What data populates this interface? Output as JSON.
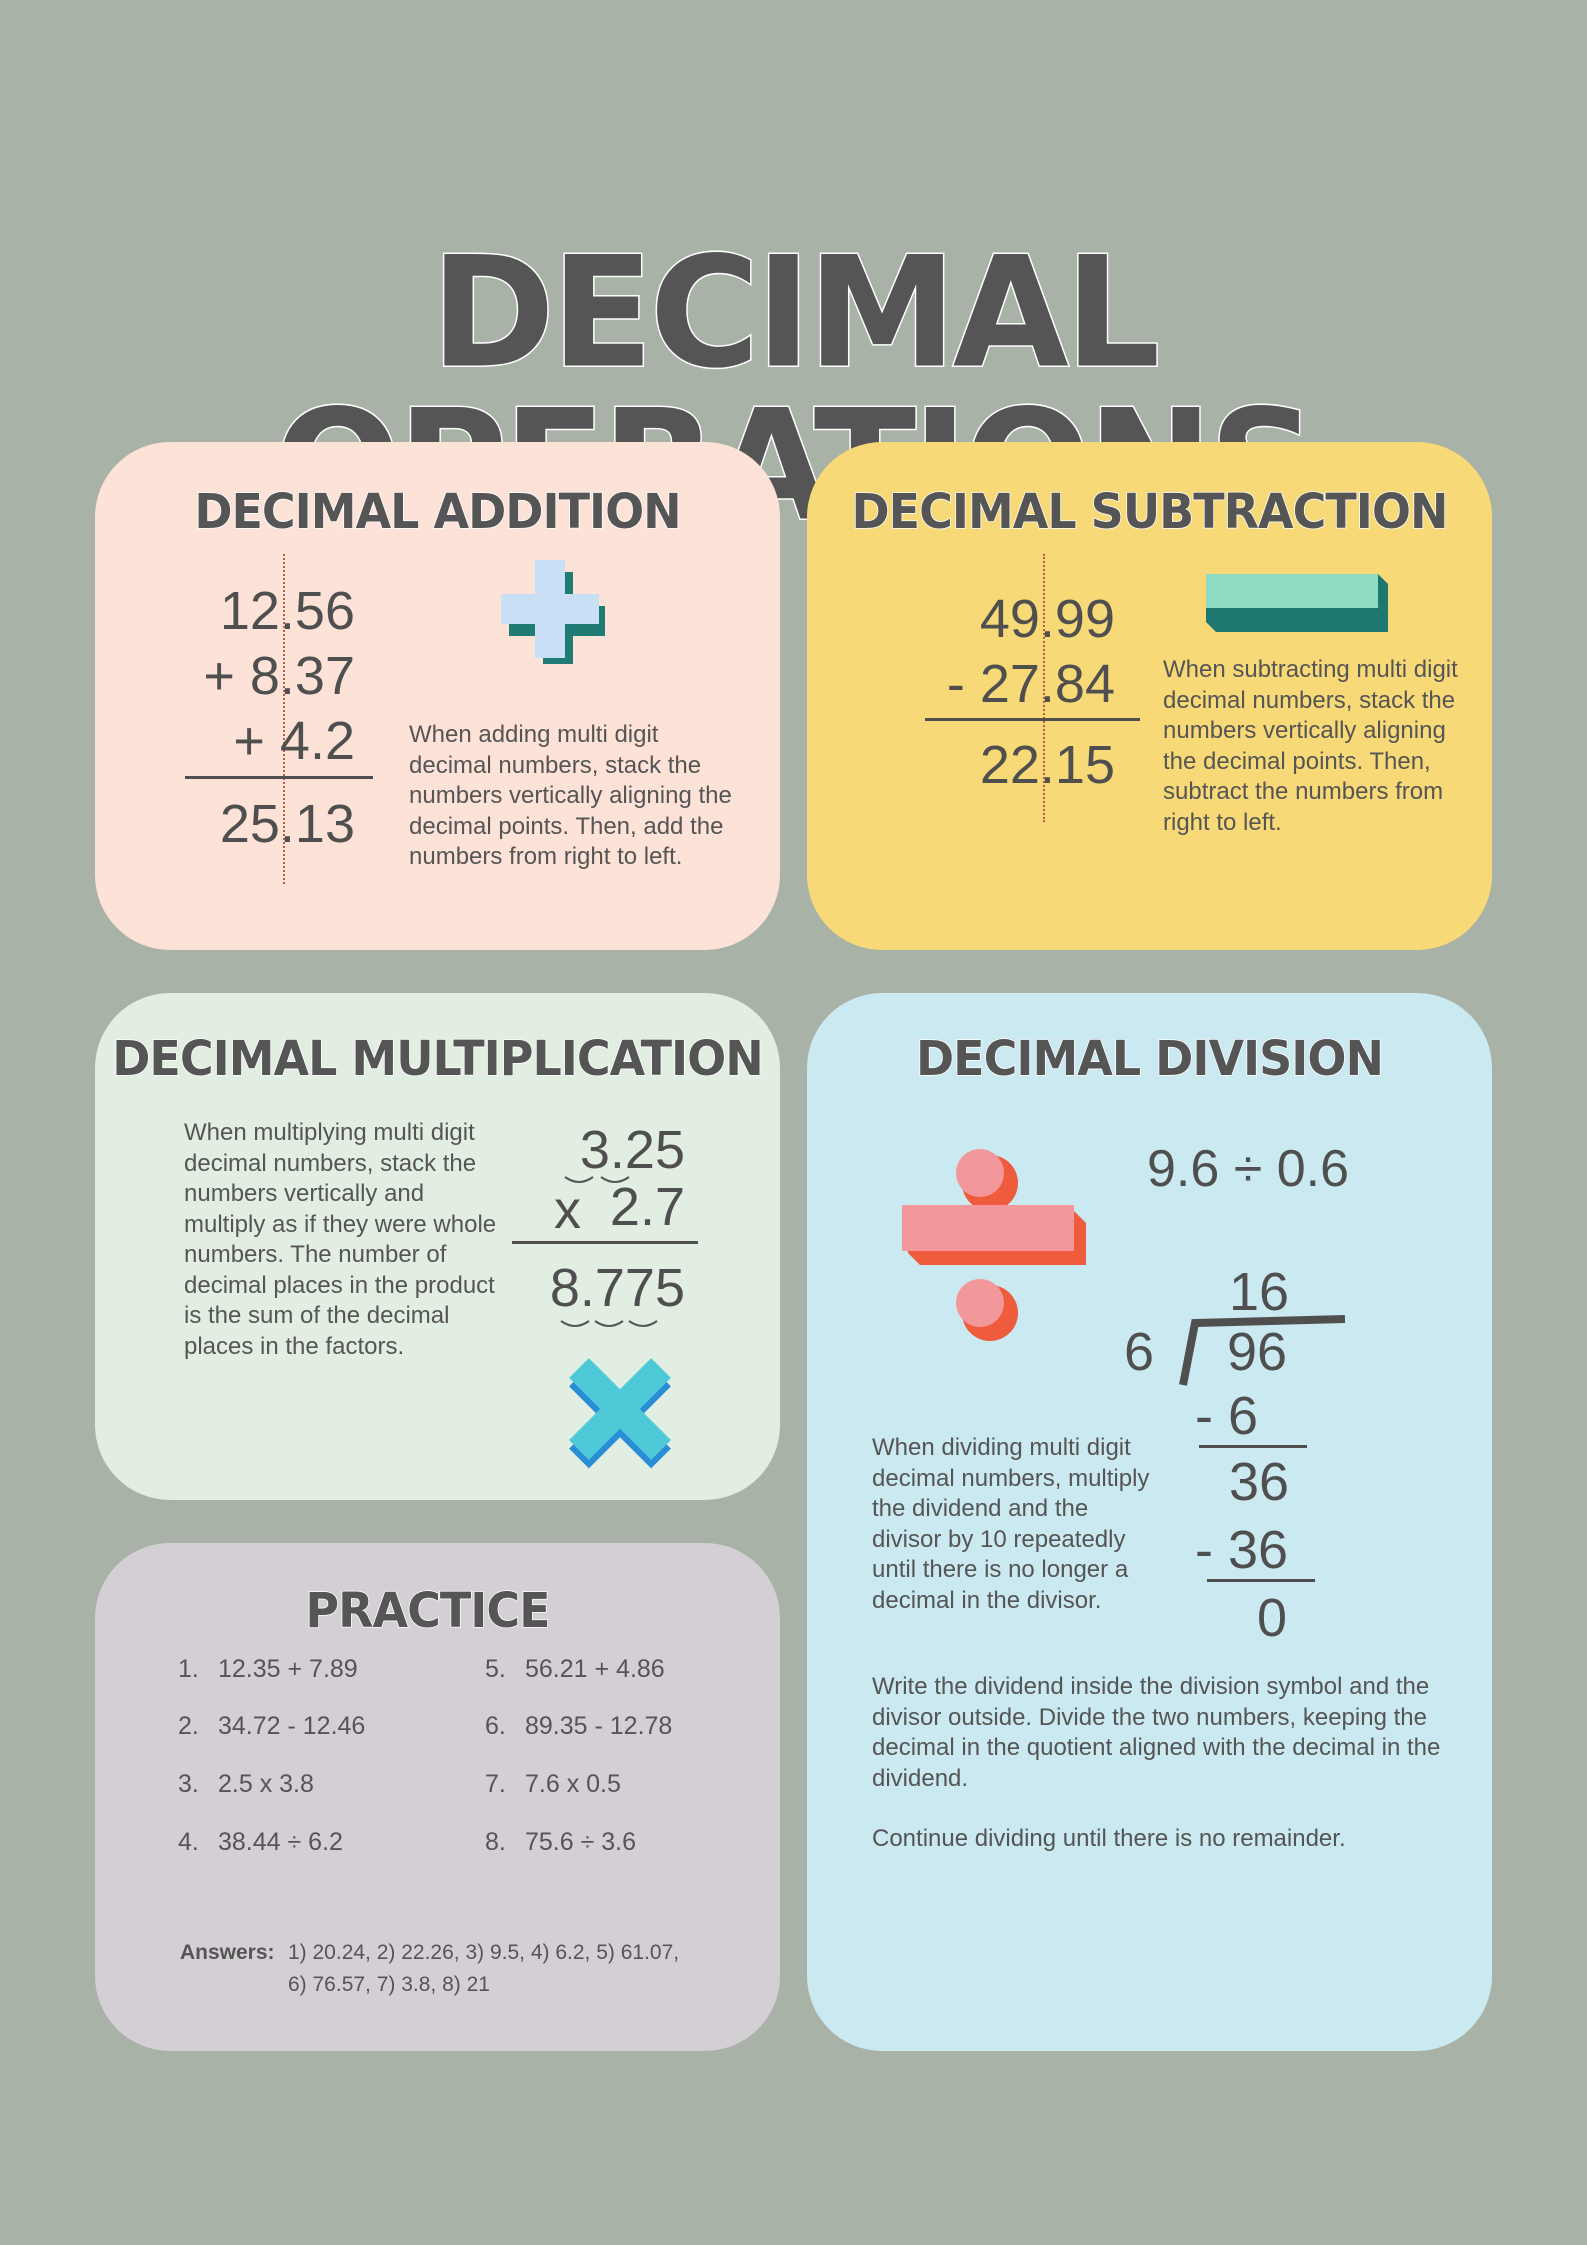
{
  "title": "DECIMAL OPERATIONS",
  "colors": {
    "background": "#a8b2a6",
    "addition_card": "#fde2d8",
    "subtraction_card": "#f8d977",
    "multiplication_card": "#e2eee1",
    "division_card": "#cbe9f0",
    "practice_card": "#d4ced5",
    "heading_text": "#555555"
  },
  "addition": {
    "heading": "DECIMAL ADDITION",
    "lines": [
      "12.56",
      "+ 8.37",
      "+ 4.2"
    ],
    "result": "25.13",
    "description": "When adding multi digit decimal numbers, stack the numbers vertically aligning the decimal points. Then, add the numbers from right to left.",
    "icon": "plus-icon"
  },
  "subtraction": {
    "heading": "DECIMAL SUBTRACTION",
    "lines": [
      "49.99",
      "- 27.84"
    ],
    "result": "22.15",
    "description": "When subtracting multi digit decimal numbers, stack the numbers vertically aligning the decimal points. Then, subtract the numbers from right to left.",
    "icon": "minus-icon"
  },
  "multiplication": {
    "heading": "DECIMAL MULTIPLICATION",
    "factor1": "3.25",
    "operator": "x",
    "factor2": "2.7",
    "result": "8.775",
    "description": "When multiplying multi digit decimal numbers, stack the numbers vertically and multiply as if they were whole numbers. The number of decimal places in the product is the sum of the decimal places in the factors.",
    "icon": "times-icon"
  },
  "division": {
    "heading": "DECIMAL DIVISION",
    "expression": "9.6 ÷ 0.6",
    "quotient": "16",
    "divisor": "6",
    "dividend": "96",
    "steps": [
      "- 6",
      "36",
      "- 36",
      "0"
    ],
    "description": "When dividing multi digit decimal numbers, multiply the dividend and the divisor by 10 repeatedly until  there is no longer a decimal in the divisor.",
    "instructions": "Write the dividend inside the division symbol and the divisor outside. Divide the two numbers, keeping the decimal in the quotient aligned with the decimal in the dividend.",
    "final_note": "Continue dividing until there is no remainder.",
    "icon": "divide-icon"
  },
  "practice": {
    "heading": "PRACTICE",
    "problems": [
      {
        "n": "1.",
        "text": "12.35 + 7.89"
      },
      {
        "n": "2.",
        "text": "34.72 - 12.46"
      },
      {
        "n": "3.",
        "text": "2.5 x 3.8"
      },
      {
        "n": "4.",
        "text": "38.44 ÷ 6.2"
      },
      {
        "n": "5.",
        "text": "56.21 + 4.86"
      },
      {
        "n": "6.",
        "text": "89.35 - 12.78"
      },
      {
        "n": "7.",
        "text": "7.6 x 0.5"
      },
      {
        "n": "8.",
        "text": "75.6 ÷ 3.6"
      }
    ],
    "answers_label": "Answers:",
    "answers_line1": "1)  20.24, 2)  22.26, 3)  9.5, 4) 6.2,  5) 61.07,",
    "answers_line2": "6)  76.57, 7)  3.8,  8)  21"
  }
}
